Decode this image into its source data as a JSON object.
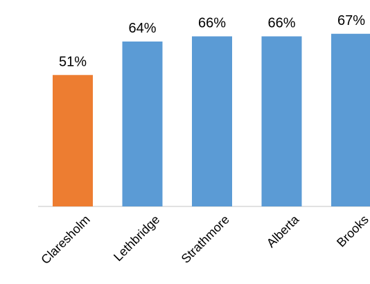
{
  "chart_data": {
    "type": "bar",
    "title": "",
    "xlabel": "",
    "ylabel": "",
    "categories": [
      "Claresholm",
      "Lethbridge",
      "Strathmore",
      "Alberta",
      "Brooks"
    ],
    "values": [
      51,
      64,
      66,
      66,
      67
    ],
    "data_labels": [
      "51%",
      "64%",
      "66%",
      "66%",
      "67%"
    ],
    "bar_colors": [
      "#ED7D31",
      "#5B9BD5",
      "#5B9BD5",
      "#5B9BD5",
      "#5B9BD5"
    ],
    "ylim": [
      0,
      100
    ],
    "grid": false,
    "legend": "none",
    "tick_label_rotation_deg": -45
  }
}
